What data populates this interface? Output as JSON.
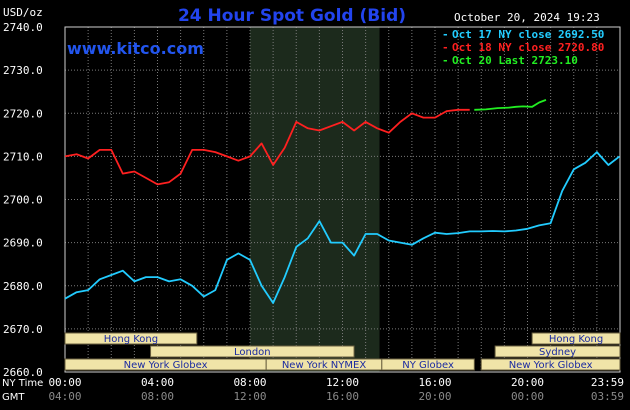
{
  "header": {
    "unit": "USD/oz",
    "title": "24 Hour Spot Gold (Bid)",
    "timestamp": "October 20, 2024 19:23",
    "site": "www.kitco.com"
  },
  "legend": [
    {
      "label": "Oct 17 NY close 2692.50",
      "color": "#22ccff"
    },
    {
      "label": "Oct 18 NY close 2720.80",
      "color": "#ff2020"
    },
    {
      "label": "Oct 20 Last 2723.10",
      "color": "#22ee22"
    }
  ],
  "axis": {
    "y_ticks": [
      "2740.0",
      "2730.0",
      "2720.0",
      "2710.0",
      "2700.0",
      "2690.0",
      "2680.0",
      "2670.0",
      "2660.0"
    ],
    "x_ticks_ny": [
      "00:00",
      "04:00",
      "08:00",
      "12:00",
      "16:00",
      "20:00",
      "23:59"
    ],
    "x_ticks_gmt": [
      "04:00",
      "08:00",
      "12:00",
      "16:00",
      "20:00",
      "00:00",
      "03:59"
    ],
    "ny_label": "NY Time",
    "gmt_label": "GMT"
  },
  "sessions": [
    {
      "label": "Hong Kong",
      "row": 0,
      "start": 0,
      "end": 5.7
    },
    {
      "label": "London",
      "row": 1,
      "start": 3.7,
      "end": 12.5
    },
    {
      "label": "New York Globex",
      "row": 2,
      "start": 0,
      "end": 8.7
    },
    {
      "label": "New York NYMEX",
      "row": 2,
      "start": 8.7,
      "end": 13.7
    },
    {
      "label": "NY Globex",
      "row": 2,
      "start": 13.7,
      "end": 17.7
    },
    {
      "label": "Hong Kong",
      "row": 0,
      "start": 20.2,
      "end": 24
    },
    {
      "label": "Sydney",
      "row": 1,
      "start": 18.6,
      "end": 24
    },
    {
      "label": "New York Globex",
      "row": 2,
      "start": 18.0,
      "end": 24
    }
  ],
  "chart_data": {
    "type": "line",
    "x_unit": "hours (NY Time)",
    "xlim": [
      0,
      24
    ],
    "ylim": [
      2660,
      2740
    ],
    "shaded_range": [
      8.0,
      13.6
    ],
    "grid": true,
    "legend_position": "top-right",
    "series": [
      {
        "name": "Oct 17 NY close 2692.50",
        "color": "#22ccff",
        "x": [
          0,
          0.5,
          1,
          1.5,
          2,
          2.5,
          3,
          3.5,
          4,
          4.5,
          5,
          5.5,
          6,
          6.5,
          7,
          7.5,
          8,
          8.5,
          9,
          9.5,
          10,
          10.5,
          11,
          11.5,
          12,
          12.5,
          13,
          13.5,
          14,
          14.5,
          15,
          15.5,
          16,
          16.5,
          17,
          17.5,
          18,
          18.5,
          19,
          19.5,
          20,
          20.5,
          21,
          21.5,
          22,
          22.5,
          23,
          23.5,
          23.98
        ],
        "y": [
          2677,
          2678.5,
          2679,
          2681.5,
          2682.5,
          2683.5,
          2681,
          2682,
          2682,
          2681,
          2681.5,
          2680,
          2677.5,
          2679,
          2686,
          2687.5,
          2686,
          2680,
          2676,
          2682,
          2689,
          2691,
          2695,
          2690,
          2690,
          2687,
          2692,
          2692,
          2690.5,
          2690,
          2689.5,
          2691,
          2692.3,
          2692,
          2692.2,
          2692.6,
          2692.6,
          2692.7,
          2692.6,
          2692.8,
          2693.2,
          2694,
          2694.5,
          2702,
          2707,
          2708.5,
          2711,
          2708,
          2710
        ]
      },
      {
        "name": "Oct 18 NY close 2720.80",
        "color": "#ff2020",
        "x": [
          0,
          0.5,
          1,
          1.5,
          2,
          2.5,
          3,
          3.5,
          4,
          4.5,
          5,
          5.5,
          6,
          6.5,
          7,
          7.5,
          8,
          8.5,
          9,
          9.5,
          10,
          10.5,
          11,
          11.5,
          12,
          12.5,
          13,
          13.5,
          14,
          14.5,
          15,
          15.5,
          16,
          16.5,
          17,
          17.5
        ],
        "y": [
          2710,
          2710.5,
          2709.5,
          2711.5,
          2711.5,
          2706,
          2706.5,
          2705,
          2703.5,
          2704,
          2706,
          2711.5,
          2711.5,
          2711,
          2710,
          2709,
          2710,
          2713,
          2708,
          2712,
          2718,
          2716.5,
          2716,
          2717,
          2718,
          2716,
          2718,
          2716.5,
          2715.5,
          2718,
          2720,
          2719,
          2719,
          2720.5,
          2720.8,
          2720.8
        ]
      },
      {
        "name": "Oct 20 Last 2723.10",
        "color": "#22ee22",
        "x": [
          17.7,
          18.2,
          18.7,
          19.2,
          19.5,
          19.8,
          20.2,
          20.5,
          20.8
        ],
        "y": [
          2720.8,
          2720.9,
          2721.2,
          2721.3,
          2721.5,
          2721.6,
          2721.5,
          2722.5,
          2723.1
        ]
      }
    ]
  }
}
